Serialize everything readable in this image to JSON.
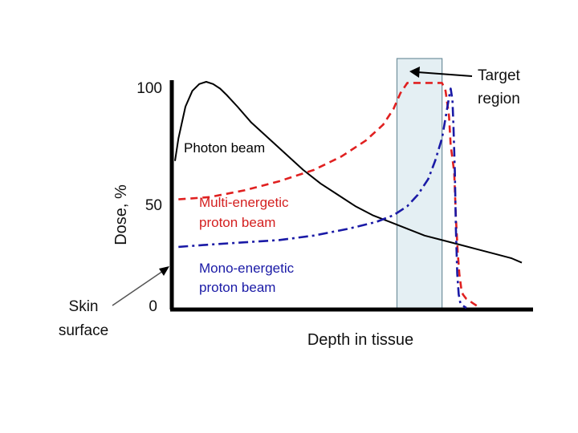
{
  "chart_data": {
    "type": "line",
    "title": "",
    "xlabel": "Depth in tissue",
    "ylabel": "Dose, %",
    "ylim": [
      0,
      100
    ],
    "xlim": [
      0,
      100
    ],
    "y_ticks": [
      "0",
      "50",
      "100"
    ],
    "target_region": {
      "label_line1": "Target",
      "label_line2": "region",
      "x_start": 64,
      "x_end": 77,
      "color": "#e4eff3"
    },
    "skin_label": {
      "line1": "Skin",
      "line2": "surface"
    },
    "series": [
      {
        "name": "Photon beam",
        "label_line1": "Photon beam",
        "label_line2": "",
        "color": "#000000",
        "style": "solid",
        "x": [
          0,
          1,
          3,
          5,
          7,
          9,
          11,
          13,
          15,
          18,
          22,
          27,
          32,
          37,
          42,
          47,
          52,
          57,
          62,
          67,
          72,
          77,
          82,
          87,
          92,
          97,
          100
        ],
        "y": [
          65,
          75,
          89,
          96,
          99,
          100,
          99,
          97,
          94,
          89,
          82,
          75,
          68,
          61,
          55,
          50,
          45,
          41,
          38,
          35,
          32,
          30,
          28,
          26,
          24,
          22,
          20
        ]
      },
      {
        "name": "Multi-energetic proton beam",
        "label_line1": "Multi-energetic",
        "label_line2": "proton beam",
        "color": "#e02020",
        "style": "dashed",
        "x": [
          1,
          10,
          20,
          30,
          40,
          48,
          55,
          60,
          63,
          65,
          67,
          69,
          72,
          75,
          77,
          78,
          79,
          79.5,
          80.5,
          81,
          81.5,
          82,
          82.5,
          83,
          83.5,
          84,
          85,
          86,
          87,
          88
        ],
        "y": [
          48,
          49,
          52,
          56,
          61,
          67,
          74,
          81,
          88,
          95,
          99.5,
          99.5,
          99.5,
          99.5,
          99.5,
          96,
          85,
          72,
          60,
          40,
          25,
          15,
          9,
          6,
          5,
          4,
          3,
          2,
          1,
          0
        ]
      },
      {
        "name": "Mono-energetic proton beam",
        "label_line1": "Mono-energetic",
        "label_line2": "proton beam",
        "color": "#1a1aa6",
        "style": "dashdot",
        "x": [
          1,
          10,
          20,
          30,
          40,
          50,
          58,
          63,
          67,
          70,
          73,
          75,
          77,
          78,
          79,
          79.5,
          80,
          80.3,
          80.7,
          81,
          81.4,
          81.8,
          82.3,
          83,
          84
        ],
        "y": [
          27,
          28,
          29,
          30,
          32,
          35,
          38,
          41,
          45,
          50,
          57,
          65,
          75,
          84,
          93,
          97,
          92,
          80,
          60,
          35,
          15,
          6,
          2,
          1,
          0
        ]
      }
    ]
  }
}
